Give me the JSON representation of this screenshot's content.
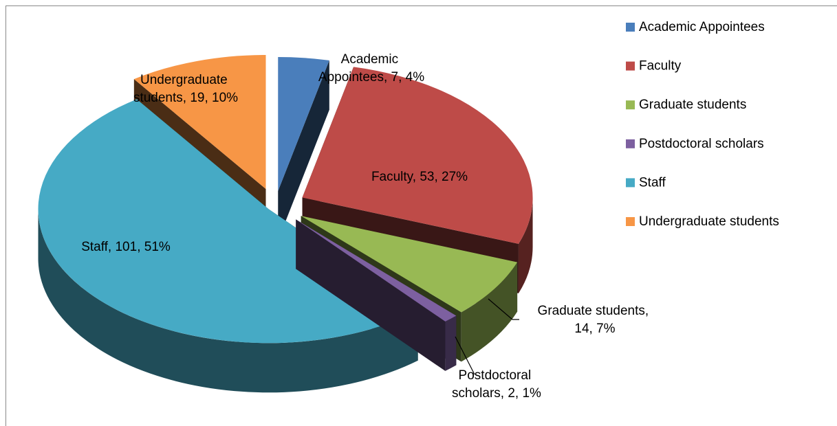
{
  "chart_data": {
    "type": "pie3d",
    "categories": [
      "Academic Appointees",
      "Faculty",
      "Graduate students",
      "Postdoctoral scholars",
      "Staff",
      "Undergraduate students"
    ],
    "values": [
      7,
      53,
      14,
      2,
      101,
      19
    ],
    "value_labels": [
      "Academic Appointees, 7, 4%",
      "Faculty, 53, 27%",
      "Graduate students, 14, 7%",
      "Postdoctoral scholars, 2, 1%",
      "Staff, 101, 51%",
      "Undergraduate students, 19, 10%"
    ],
    "colors": [
      "#4a7ebb",
      "#be4b48",
      "#98b954",
      "#7d60a0",
      "#46aac5",
      "#f79646"
    ],
    "legend": "right"
  }
}
